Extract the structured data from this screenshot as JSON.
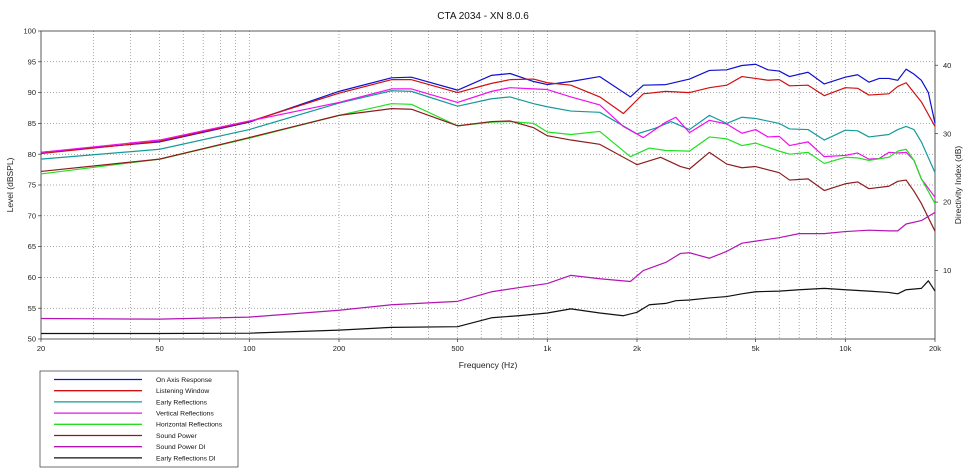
{
  "chart_data": {
    "type": "line",
    "title": "CTA 2034 - XN 8.0.6",
    "xlabel": "Frequency (Hz)",
    "ylabel": "Level (dBSPL)",
    "y2label": "Directivity Index (dB)",
    "xscale": "log",
    "xlim": [
      20,
      20000
    ],
    "ylim": [
      50,
      100
    ],
    "y2lim": [
      0,
      45
    ],
    "x_ticks": [
      20,
      50,
      100,
      200,
      500,
      1000,
      2000,
      5000,
      10000,
      20000
    ],
    "x_tick_labels": [
      "20",
      "50",
      "100",
      "200",
      "500",
      "1k",
      "2k",
      "5k",
      "10k",
      "20k"
    ],
    "y_ticks": [
      50,
      55,
      60,
      65,
      70,
      75,
      80,
      85,
      90,
      95,
      100
    ],
    "y2_ticks": [
      10,
      20,
      30,
      40
    ],
    "grid": true,
    "legend_position": "below-left",
    "series": [
      {
        "name": "On Axis Response",
        "color": "#1010d0",
        "axis": "left",
        "points": [
          [
            20,
            80.3
          ],
          [
            50,
            82
          ],
          [
            100,
            85.2
          ],
          [
            200,
            90.2
          ],
          [
            300,
            92.4
          ],
          [
            350,
            92.5
          ],
          [
            500,
            90.4
          ],
          [
            650,
            92.8
          ],
          [
            750,
            93.1
          ],
          [
            900,
            91.8
          ],
          [
            1000,
            91.3
          ],
          [
            1200,
            91.8
          ],
          [
            1500,
            92.6
          ],
          [
            1900,
            89.3
          ],
          [
            2100,
            91.2
          ],
          [
            2500,
            91.3
          ],
          [
            3000,
            92.2
          ],
          [
            3500,
            93.6
          ],
          [
            4000,
            93.7
          ],
          [
            4500,
            94.4
          ],
          [
            5000,
            94.6
          ],
          [
            5500,
            93.7
          ],
          [
            6000,
            93.5
          ],
          [
            6500,
            92.6
          ],
          [
            7500,
            93.3
          ],
          [
            8500,
            91.4
          ],
          [
            10000,
            92.5
          ],
          [
            11000,
            92.9
          ],
          [
            12000,
            91.7
          ],
          [
            13000,
            92.3
          ],
          [
            14000,
            92.3
          ],
          [
            15000,
            92
          ],
          [
            16000,
            93.8
          ],
          [
            17000,
            93
          ],
          [
            18000,
            92
          ],
          [
            19000,
            90
          ],
          [
            20000,
            85
          ]
        ]
      },
      {
        "name": "Listening Window",
        "color": "#d01010",
        "axis": "left",
        "points": [
          [
            20,
            80.1
          ],
          [
            50,
            82.1
          ],
          [
            100,
            85.3
          ],
          [
            200,
            89.9
          ],
          [
            300,
            92.1
          ],
          [
            350,
            92.1
          ],
          [
            500,
            90
          ],
          [
            650,
            91.5
          ],
          [
            750,
            92.1
          ],
          [
            900,
            92.2
          ],
          [
            1000,
            91.6
          ],
          [
            1200,
            91.2
          ],
          [
            1500,
            89.3
          ],
          [
            1800,
            86.6
          ],
          [
            2100,
            89.8
          ],
          [
            2500,
            90.2
          ],
          [
            3000,
            90
          ],
          [
            3500,
            90.8
          ],
          [
            4000,
            91.2
          ],
          [
            4500,
            92.6
          ],
          [
            5000,
            92.3
          ],
          [
            5500,
            92
          ],
          [
            6000,
            92.1
          ],
          [
            6500,
            91.1
          ],
          [
            7500,
            91.2
          ],
          [
            8500,
            89.5
          ],
          [
            10000,
            90.8
          ],
          [
            11000,
            90.7
          ],
          [
            12000,
            89.6
          ],
          [
            14000,
            89.8
          ],
          [
            15000,
            91
          ],
          [
            16000,
            91.6
          ],
          [
            17000,
            90
          ],
          [
            18000,
            88.5
          ],
          [
            20000,
            84.5
          ]
        ]
      },
      {
        "name": "Early Reflections",
        "color": "#159a9a",
        "axis": "left",
        "points": [
          [
            20,
            79.2
          ],
          [
            50,
            80.8
          ],
          [
            100,
            84
          ],
          [
            200,
            88.3
          ],
          [
            300,
            90.3
          ],
          [
            350,
            90.2
          ],
          [
            500,
            87.8
          ],
          [
            650,
            89
          ],
          [
            750,
            89.3
          ],
          [
            900,
            88.2
          ],
          [
            1000,
            87.7
          ],
          [
            1200,
            87
          ],
          [
            1500,
            86.8
          ],
          [
            2000,
            83.3
          ],
          [
            2300,
            84.2
          ],
          [
            2600,
            85.3
          ],
          [
            3000,
            84
          ],
          [
            3500,
            86.3
          ],
          [
            4000,
            85
          ],
          [
            4500,
            86
          ],
          [
            5000,
            85.8
          ],
          [
            6000,
            85
          ],
          [
            6500,
            84.1
          ],
          [
            7500,
            84
          ],
          [
            8500,
            82.3
          ],
          [
            10000,
            83.9
          ],
          [
            11000,
            83.8
          ],
          [
            12000,
            82.8
          ],
          [
            14000,
            83.2
          ],
          [
            15000,
            84
          ],
          [
            16000,
            84.5
          ],
          [
            17000,
            84
          ],
          [
            18000,
            82
          ],
          [
            20000,
            77
          ]
        ]
      },
      {
        "name": "Vertical Reflections",
        "color": "#ee10ee",
        "axis": "left",
        "points": [
          [
            20,
            80.3
          ],
          [
            50,
            82.3
          ],
          [
            100,
            85.4
          ],
          [
            200,
            88.4
          ],
          [
            300,
            90.6
          ],
          [
            350,
            90.6
          ],
          [
            500,
            88.4
          ],
          [
            650,
            90.2
          ],
          [
            750,
            90.8
          ],
          [
            900,
            90.6
          ],
          [
            1000,
            90.5
          ],
          [
            1200,
            89.3
          ],
          [
            1500,
            88
          ],
          [
            1800,
            84.5
          ],
          [
            2100,
            82.7
          ],
          [
            2500,
            85.2
          ],
          [
            2700,
            86
          ],
          [
            3000,
            83.5
          ],
          [
            3500,
            85.5
          ],
          [
            4000,
            84.9
          ],
          [
            4500,
            83.4
          ],
          [
            5000,
            84
          ],
          [
            5500,
            82.8
          ],
          [
            6000,
            82.9
          ],
          [
            6500,
            81.4
          ],
          [
            7500,
            82
          ],
          [
            8500,
            79.6
          ],
          [
            10000,
            79.8
          ],
          [
            11000,
            80.2
          ],
          [
            12000,
            79.2
          ],
          [
            13000,
            79.3
          ],
          [
            14000,
            80.3
          ],
          [
            15000,
            80.2
          ],
          [
            16000,
            80.3
          ],
          [
            17000,
            79
          ],
          [
            18000,
            76
          ],
          [
            20000,
            73
          ]
        ]
      },
      {
        "name": "Horizontal Reflections",
        "color": "#20e020",
        "axis": "left",
        "points": [
          [
            20,
            76.8
          ],
          [
            50,
            79.2
          ],
          [
            100,
            82.6
          ],
          [
            200,
            86.3
          ],
          [
            300,
            88.2
          ],
          [
            350,
            88.1
          ],
          [
            500,
            84.6
          ],
          [
            650,
            85.2
          ],
          [
            750,
            85.3
          ],
          [
            900,
            85
          ],
          [
            1000,
            83.6
          ],
          [
            1200,
            83.2
          ],
          [
            1500,
            83.7
          ],
          [
            1900,
            79.6
          ],
          [
            2200,
            81
          ],
          [
            2500,
            80.6
          ],
          [
            3000,
            80.5
          ],
          [
            3500,
            82.8
          ],
          [
            4000,
            82.5
          ],
          [
            4500,
            81.4
          ],
          [
            5000,
            81.8
          ],
          [
            6000,
            80.5
          ],
          [
            6500,
            80
          ],
          [
            7500,
            80.3
          ],
          [
            8500,
            78.5
          ],
          [
            10000,
            79.5
          ],
          [
            11000,
            79.4
          ],
          [
            12000,
            79
          ],
          [
            14000,
            79.5
          ],
          [
            15000,
            80.5
          ],
          [
            16000,
            80.8
          ],
          [
            17000,
            79
          ],
          [
            18000,
            76
          ],
          [
            20000,
            72
          ]
        ]
      },
      {
        "name": "Sound Power",
        "color": "#8c1c1c",
        "axis": "left",
        "points": [
          [
            20,
            77.2
          ],
          [
            50,
            79.2
          ],
          [
            100,
            82.7
          ],
          [
            200,
            86.3
          ],
          [
            300,
            87.4
          ],
          [
            350,
            87.3
          ],
          [
            500,
            84.6
          ],
          [
            650,
            85.3
          ],
          [
            750,
            85.4
          ],
          [
            900,
            84.3
          ],
          [
            1000,
            83
          ],
          [
            1200,
            82.3
          ],
          [
            1500,
            81.6
          ],
          [
            2000,
            78.3
          ],
          [
            2400,
            79.5
          ],
          [
            2800,
            78
          ],
          [
            3000,
            77.6
          ],
          [
            3500,
            80.3
          ],
          [
            4000,
            78.4
          ],
          [
            4500,
            77.8
          ],
          [
            5000,
            78
          ],
          [
            6000,
            77
          ],
          [
            6500,
            75.8
          ],
          [
            7500,
            76
          ],
          [
            8500,
            74.1
          ],
          [
            10000,
            75.2
          ],
          [
            11000,
            75.5
          ],
          [
            12000,
            74.4
          ],
          [
            14000,
            74.8
          ],
          [
            15000,
            75.6
          ],
          [
            16000,
            75.8
          ],
          [
            17000,
            74
          ],
          [
            18000,
            72
          ],
          [
            20000,
            67.5
          ]
        ]
      },
      {
        "name": "Sound Power DI",
        "color": "#b414b4",
        "axis": "right",
        "points": [
          [
            20,
            3
          ],
          [
            50,
            2.9
          ],
          [
            100,
            3.2
          ],
          [
            200,
            4.2
          ],
          [
            300,
            5
          ],
          [
            500,
            5.5
          ],
          [
            650,
            6.9
          ],
          [
            800,
            7.5
          ],
          [
            1000,
            8.1
          ],
          [
            1200,
            9.3
          ],
          [
            1500,
            8.8
          ],
          [
            1900,
            8.4
          ],
          [
            2100,
            10
          ],
          [
            2500,
            11.2
          ],
          [
            2800,
            12.5
          ],
          [
            3000,
            12.6
          ],
          [
            3500,
            11.8
          ],
          [
            4000,
            12.8
          ],
          [
            4500,
            14
          ],
          [
            5000,
            14.3
          ],
          [
            6000,
            14.8
          ],
          [
            7000,
            15.4
          ],
          [
            8500,
            15.4
          ],
          [
            10000,
            15.7
          ],
          [
            12000,
            15.9
          ],
          [
            14000,
            15.8
          ],
          [
            15000,
            15.8
          ],
          [
            16000,
            16.8
          ],
          [
            18000,
            17.3
          ],
          [
            20000,
            18.5
          ]
        ]
      },
      {
        "name": "Early Reflections DI",
        "color": "#111111",
        "axis": "right",
        "points": [
          [
            20,
            0.8
          ],
          [
            50,
            0.8
          ],
          [
            100,
            0.85
          ],
          [
            200,
            1.3
          ],
          [
            300,
            1.7
          ],
          [
            500,
            1.8
          ],
          [
            650,
            3.1
          ],
          [
            800,
            3.4
          ],
          [
            1000,
            3.8
          ],
          [
            1200,
            4.4
          ],
          [
            1500,
            3.8
          ],
          [
            1800,
            3.4
          ],
          [
            2000,
            3.9
          ],
          [
            2200,
            5
          ],
          [
            2500,
            5.2
          ],
          [
            2700,
            5.6
          ],
          [
            3000,
            5.7
          ],
          [
            3500,
            6
          ],
          [
            4000,
            6.2
          ],
          [
            4500,
            6.6
          ],
          [
            5000,
            6.9
          ],
          [
            6000,
            7
          ],
          [
            7000,
            7.2
          ],
          [
            8500,
            7.4
          ],
          [
            10000,
            7.2
          ],
          [
            12000,
            7
          ],
          [
            14000,
            6.8
          ],
          [
            15000,
            6.6
          ],
          [
            16000,
            7.2
          ],
          [
            18000,
            7.4
          ],
          [
            19000,
            8.5
          ],
          [
            20000,
            7
          ]
        ]
      }
    ]
  }
}
